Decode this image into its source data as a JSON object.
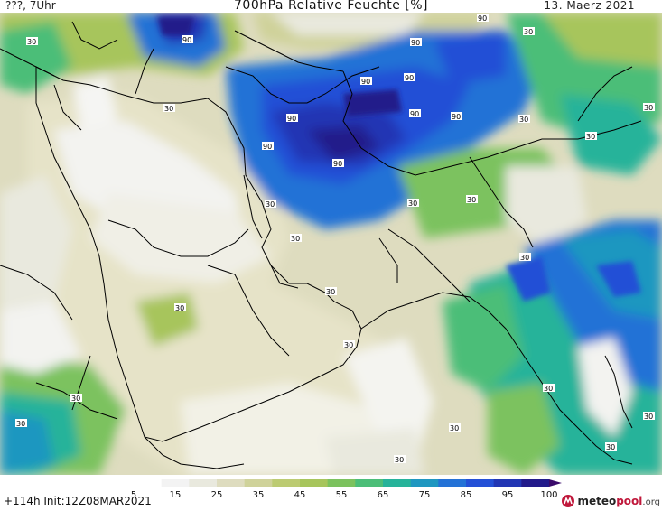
{
  "header": {
    "left": "???, 7Uhr",
    "title": "700hPa Relative Feuchte [%]",
    "date": "13. Maerz 2021"
  },
  "footer": {
    "run": "+114h  Init:12Z08MAR2021",
    "logo_part1": "meteo",
    "logo_part2": "pool",
    "logo_part3": ".org"
  },
  "colorbar": {
    "labels": [
      "5",
      "15",
      "25",
      "35",
      "45",
      "55",
      "65",
      "75",
      "85",
      "95",
      "100"
    ],
    "colors": [
      "#ffffff",
      "#f3f3f3",
      "#e9e9de",
      "#dedcbf",
      "#cfd29a",
      "#bccb72",
      "#a7c55c",
      "#7cc25e",
      "#4cbe78",
      "#27b39a",
      "#1f97c0",
      "#2472d6",
      "#2450d6",
      "#2236b4",
      "#221a8a",
      "#3a0a6a"
    ]
  },
  "contour_labels": [
    "30",
    "90",
    "90",
    "90",
    "90",
    "90",
    "90",
    "90",
    "90",
    "90",
    "90",
    "30",
    "30",
    "30",
    "30",
    "30",
    "30",
    "30",
    "30",
    "30",
    "30",
    "30",
    "30",
    "30",
    "30",
    "30",
    "30",
    "30",
    "30",
    "30",
    "30"
  ]
}
